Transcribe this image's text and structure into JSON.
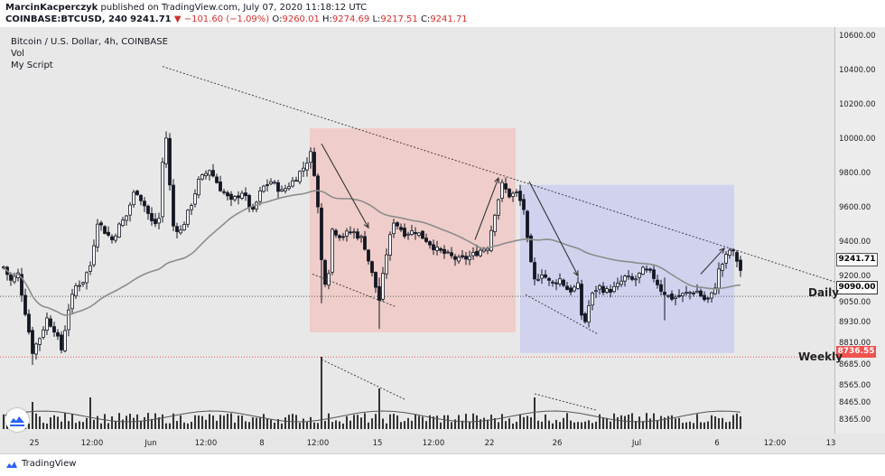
{
  "header": {
    "author": "MarcinKacperczyk",
    "published_text": " published on TradingView.com, July 07, 2020 11:18:12 UTC",
    "symbol": "COINBASE:BTCUSD, 240",
    "last": "9241.71",
    "change": "−101.60 (−1.09%)",
    "o_label": "O:",
    "open": "9260.01",
    "h_label": "H:",
    "high": "9274.69",
    "l_label": "L:",
    "low": "9217.51",
    "c_label": "C:",
    "close": "9241.71"
  },
  "legend": {
    "title": "Bitcoin / U.S. Dollar, 4h, COINBASE",
    "vol": "Vol",
    "script": "My Script"
  },
  "levels": {
    "price_tag": "9241.71",
    "daily_value": "9090.00",
    "daily_name": "Daily",
    "weekly_value": "8736.55",
    "weekly_name": "Weekly"
  },
  "footer": {
    "brand": "TradingView"
  },
  "colors": {
    "candle": "#131722",
    "ma": "#8c8c8c",
    "zone_red": "#f2c4c0",
    "zone_blue": "#c9cbf0",
    "weekly_line": "#f05350",
    "daily_line": "#555555"
  },
  "icons": {
    "footer_logo": "tradingview-logo-icon",
    "badge": "tradingview-badge-icon"
  },
  "chart_data": {
    "type": "candlestick",
    "title": "Bitcoin / U.S. Dollar, 4h, COINBASE",
    "ylim": [
      8290,
      10660
    ],
    "y_ticks": [
      10600,
      10400,
      10200,
      10000,
      9800,
      9600,
      9400,
      9200,
      9050,
      8930,
      8810,
      8685,
      8565,
      8465,
      8365
    ],
    "x_ticks": [
      "25",
      "12:00",
      "Jun",
      "12:00",
      "8",
      "12:00",
      "15",
      "12:00",
      "22",
      "26",
      "Jul",
      "6",
      "12:00",
      "13"
    ],
    "series": [
      {
        "name": "Vol",
        "type": "volume"
      },
      {
        "name": "My Script",
        "type": "moving-average"
      }
    ],
    "key_points": [
      {
        "x": "May 25",
        "y": 9200
      },
      {
        "x": "May 26",
        "y": 8750
      },
      {
        "x": "May 28",
        "y": 9100
      },
      {
        "x": "Jun 2",
        "y": 10420
      },
      {
        "x": "Jun 2",
        "y": 9450
      },
      {
        "x": "Jun 10",
        "y": 10000
      },
      {
        "x": "Jun 11",
        "y": 9100
      },
      {
        "x": "Jun 15",
        "y": 8920
      },
      {
        "x": "Jun 16",
        "y": 9500
      },
      {
        "x": "Jun 22",
        "y": 9780
      },
      {
        "x": "Jun 24",
        "y": 9200
      },
      {
        "x": "Jun 27",
        "y": 8820
      },
      {
        "x": "Jul 2",
        "y": 9250
      },
      {
        "x": "Jul 6",
        "y": 9380
      },
      {
        "x": "Jul 7",
        "y": 9241.71
      }
    ],
    "horizontal_levels": [
      {
        "name": "Daily",
        "value": 9090.0
      },
      {
        "name": "Weekly",
        "value": 8736.55
      }
    ]
  }
}
